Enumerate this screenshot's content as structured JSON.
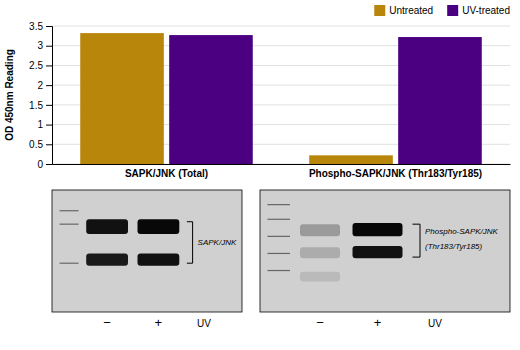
{
  "chart_data": {
    "type": "bar",
    "categories": [
      "SAPK/JNK (Total)",
      "Phospho-SAPK/JNK (Thr183/Tyr185)"
    ],
    "series": [
      {
        "name": "Untreated",
        "color": "#B8860B",
        "values": [
          3.32,
          0.22
        ]
      },
      {
        "name": "UV-treated",
        "color": "#4B0082",
        "values": [
          3.27,
          3.22
        ]
      }
    ],
    "y_label": "OD 450nm Reading",
    "ylim": [
      0,
      3.5
    ],
    "yticks": [
      0,
      0.5,
      1,
      1.5,
      2,
      2.5,
      3,
      3.5
    ],
    "grid": true,
    "legend": "upper right",
    "annotations": [
      "SAPK/JNK",
      "−",
      "+",
      "UV",
      "Phospho-SAPK/JNK",
      "(Thr183/Tyr185)",
      "−",
      "+",
      "UV"
    ]
  }
}
